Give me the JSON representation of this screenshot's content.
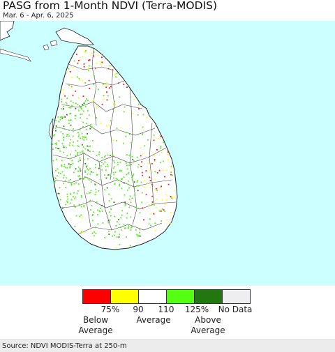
{
  "title": "PASG from 1-Month NDVI (Terra-MODIS)",
  "subtitle": "Mar. 6 - Apr. 6, 2025",
  "map": {
    "region": "Sri Lanka",
    "colors": {
      "ocean": "#ccffff",
      "land": "#ffffff",
      "border": "#333333",
      "vegetation_above": "#55ee22",
      "vegetation_high": "#227711",
      "below": "#ff1111",
      "slightly_below": "#ffff11"
    }
  },
  "legend": {
    "swatches": [
      {
        "color": "#ff0000"
      },
      {
        "color": "#ffff00"
      },
      {
        "color": "#ffffff"
      },
      {
        "color": "#55ff11"
      },
      {
        "color": "#227711"
      },
      {
        "color": "#eeeef0"
      }
    ],
    "ticks": [
      "75%",
      "90",
      "110",
      "125%"
    ],
    "no_data": "No Data",
    "below_line1": "Below",
    "below_line2": "Average",
    "average": "Average",
    "above_line1": "Above",
    "above_line2": "Average"
  },
  "footer": "Source: NDVI MODIS-Terra at 250-m"
}
